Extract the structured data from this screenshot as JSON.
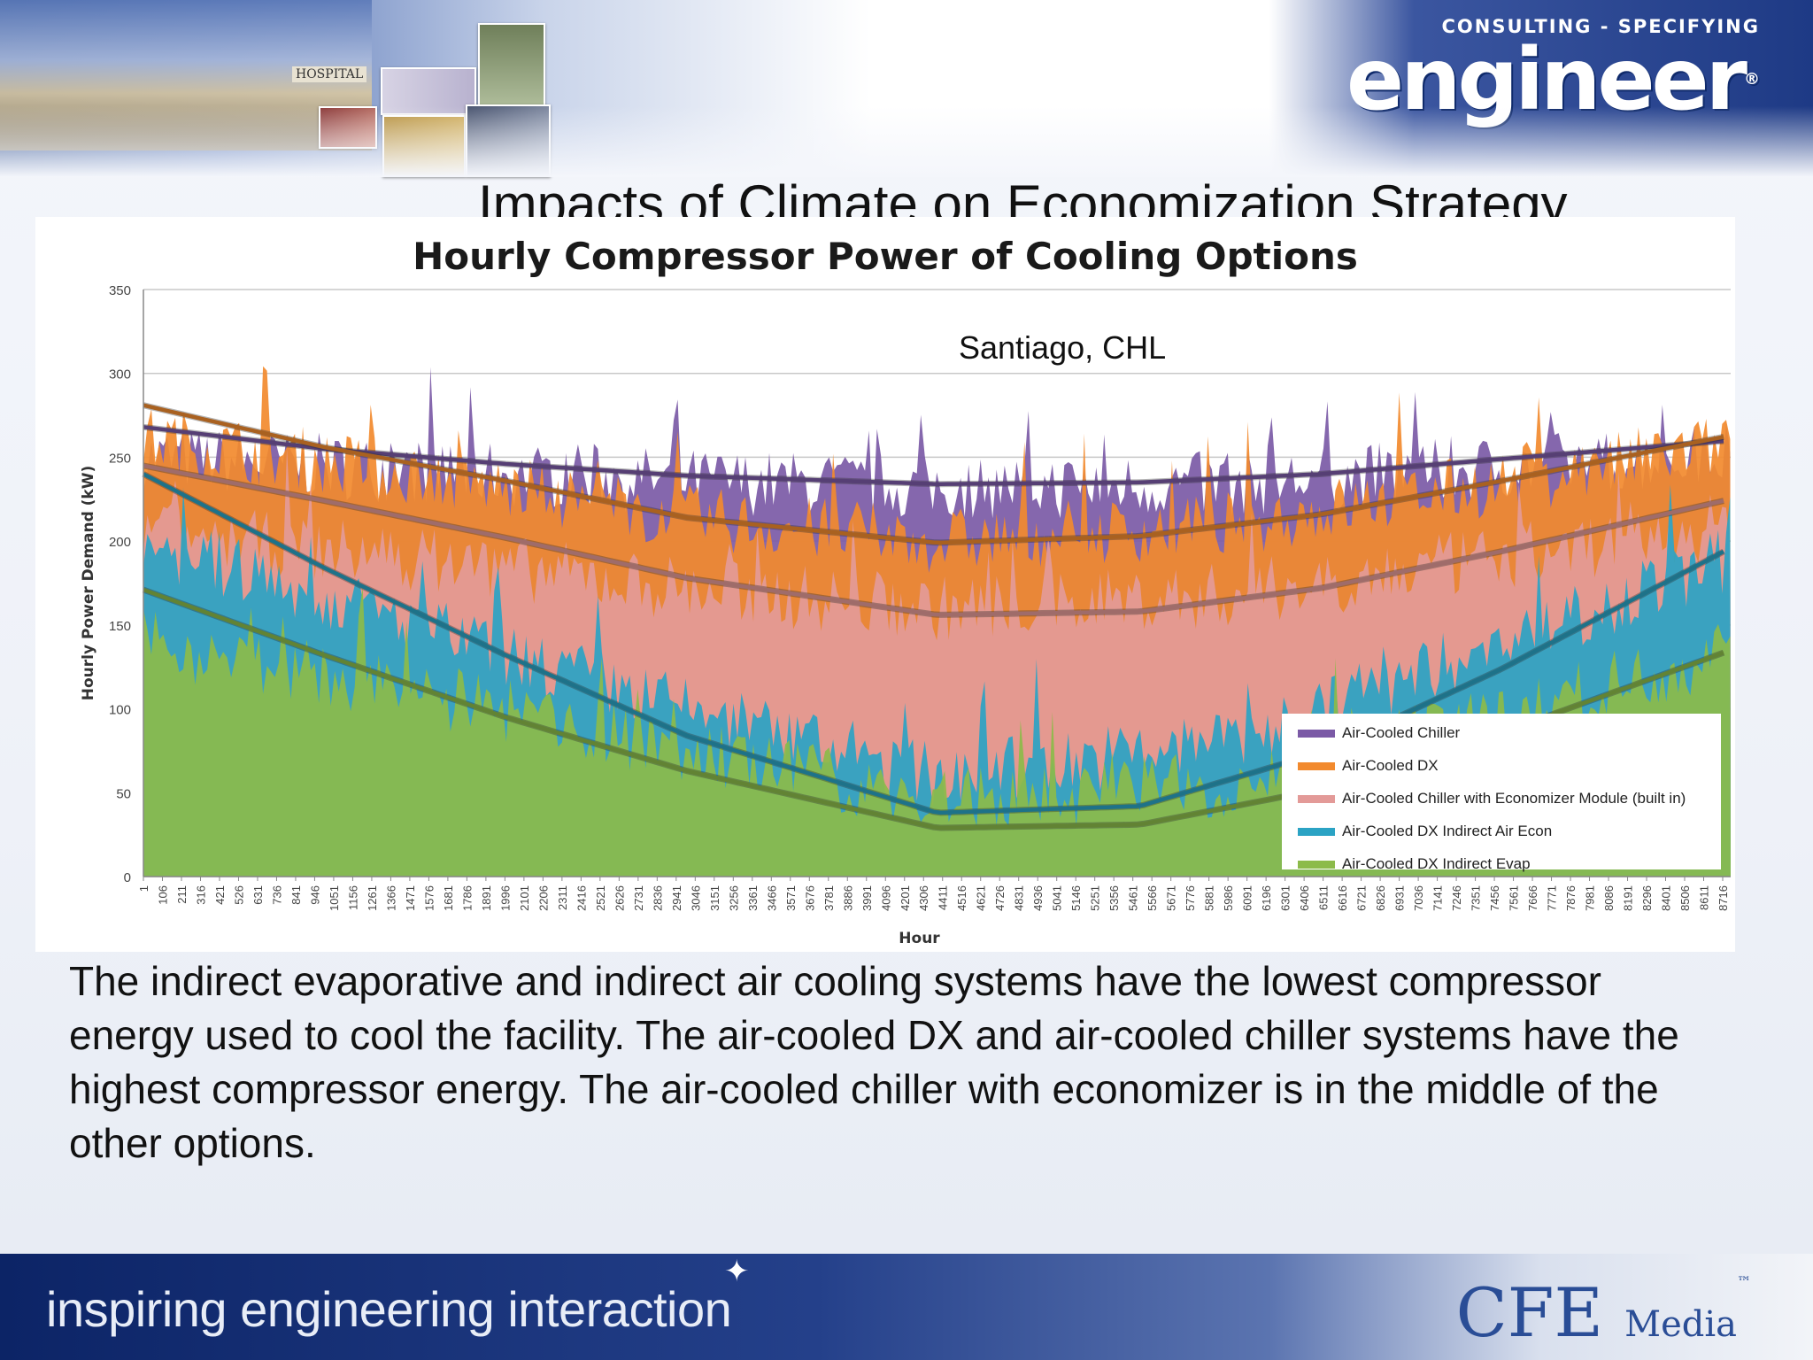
{
  "brand": {
    "tagline_top": "CONSULTING - SPECIFYING",
    "name": "engineer",
    "registered": "®",
    "hospital_sign": "HOSPITAL"
  },
  "slide": {
    "title": "Impacts of Climate on Economization Strategy",
    "body": "The indirect evaporative and indirect air cooling systems have the lowest compressor energy used to cool the facility. The air-cooled DX and air-cooled chiller systems have the highest compressor energy. The air-cooled chiller with economizer is in the middle of the other options."
  },
  "footer": {
    "tagline": "inspiring engineering interaction",
    "publisher": "CFE",
    "publisher_suffix": "Media",
    "trademark": "™"
  },
  "chart_data": {
    "type": "area",
    "title": "Hourly Compressor Power of Cooling Options",
    "subtitle": "Santiago, CHL",
    "xlabel": "Hour",
    "ylabel": "Hourly Power Demand (kW)",
    "ylim": [
      0,
      350
    ],
    "yticks": [
      0,
      50,
      100,
      150,
      200,
      250,
      300,
      350
    ],
    "xlim": [
      1,
      8760
    ],
    "xtick_labels": [
      "1",
      "106",
      "211",
      "316",
      "421",
      "526",
      "631",
      "736",
      "841",
      "946",
      "1051",
      "1156",
      "1261",
      "1366",
      "1471",
      "1576",
      "1681",
      "1786",
      "1891",
      "1996",
      "2101",
      "2206",
      "2311",
      "2416",
      "2521",
      "2626",
      "2731",
      "2836",
      "2941",
      "3046",
      "3151",
      "3256",
      "3361",
      "3466",
      "3571",
      "3676",
      "3781",
      "3886",
      "3991",
      "4096",
      "4201",
      "4306",
      "4411",
      "4516",
      "4621",
      "4726",
      "4831",
      "4936",
      "5041",
      "5146",
      "5251",
      "5356",
      "5461",
      "5566",
      "5671",
      "5776",
      "5881",
      "5986",
      "6091",
      "6196",
      "6301",
      "6406",
      "6511",
      "6616",
      "6721",
      "6826",
      "6931",
      "7036",
      "7141",
      "7246",
      "7351",
      "7456",
      "7561",
      "7666",
      "7771",
      "7876",
      "7981",
      "8086",
      "8191",
      "8296",
      "8401",
      "8506",
      "8611",
      "8716"
    ],
    "grid": true,
    "legend_position": "bottom-right",
    "series": [
      {
        "name": "Air-Cooled Chiller",
        "color": "#7b5aa6",
        "trend": [
          [
            1,
            268
          ],
          [
            1000,
            255
          ],
          [
            2000,
            246
          ],
          [
            3000,
            239
          ],
          [
            4380,
            234
          ],
          [
            5500,
            235
          ],
          [
            6500,
            240
          ],
          [
            7500,
            249
          ],
          [
            8760,
            260
          ]
        ],
        "hourly_level": [
          [
            1,
            250
          ],
          [
            1500,
            242
          ],
          [
            3000,
            236
          ],
          [
            4380,
            232
          ],
          [
            6000,
            234
          ],
          [
            7500,
            244
          ],
          [
            8760,
            252
          ]
        ]
      },
      {
        "name": "Air-Cooled DX",
        "color": "#f28a2e",
        "trend": [
          [
            1,
            281
          ],
          [
            1000,
            256
          ],
          [
            2000,
            236
          ],
          [
            3000,
            214
          ],
          [
            4380,
            199
          ],
          [
            5500,
            203
          ],
          [
            6500,
            216
          ],
          [
            7500,
            236
          ],
          [
            8760,
            263
          ]
        ],
        "hourly_level": [
          [
            1,
            262
          ],
          [
            1500,
            240
          ],
          [
            3000,
            214
          ],
          [
            4380,
            200
          ],
          [
            6000,
            210
          ],
          [
            7500,
            235
          ],
          [
            8760,
            258
          ]
        ]
      },
      {
        "name": "Air-Cooled Chiller with Economizer Module (built in)",
        "color": "#e39a98",
        "trend": [
          [
            1,
            245
          ],
          [
            1000,
            224
          ],
          [
            2000,
            202
          ],
          [
            3000,
            178
          ],
          [
            4380,
            156
          ],
          [
            5500,
            158
          ],
          [
            6500,
            172
          ],
          [
            7500,
            194
          ],
          [
            8760,
            225
          ]
        ],
        "hourly_level": [
          [
            1,
            205
          ],
          [
            1500,
            190
          ],
          [
            3000,
            172
          ],
          [
            4380,
            160
          ],
          [
            6000,
            168
          ],
          [
            7500,
            190
          ],
          [
            8760,
            210
          ]
        ]
      },
      {
        "name": "Air-Cooled DX Indirect Air Econ",
        "color": "#2ba3c4",
        "trend": [
          [
            1,
            240
          ],
          [
            1000,
            184
          ],
          [
            2000,
            132
          ],
          [
            3000,
            84
          ],
          [
            4380,
            38
          ],
          [
            5500,
            42
          ],
          [
            6500,
            74
          ],
          [
            7500,
            124
          ],
          [
            8760,
            196
          ]
        ],
        "hourly_level": [
          [
            1,
            200
          ],
          [
            1500,
            150
          ],
          [
            3000,
            100
          ],
          [
            4380,
            60
          ],
          [
            6000,
            80
          ],
          [
            7500,
            140
          ],
          [
            8760,
            190
          ]
        ]
      },
      {
        "name": "Air-Cooled DX Indirect Evap",
        "color": "#8cbb4a",
        "trend": [
          [
            1,
            171
          ],
          [
            1000,
            132
          ],
          [
            2000,
            95
          ],
          [
            3000,
            63
          ],
          [
            4380,
            29
          ],
          [
            5500,
            31
          ],
          [
            6500,
            52
          ],
          [
            7500,
            86
          ],
          [
            8760,
            135
          ]
        ],
        "hourly_level": [
          [
            1,
            140
          ],
          [
            1500,
            110
          ],
          [
            3000,
            75
          ],
          [
            4380,
            45
          ],
          [
            6000,
            55
          ],
          [
            7500,
            95
          ],
          [
            8760,
            135
          ]
        ]
      }
    ]
  }
}
